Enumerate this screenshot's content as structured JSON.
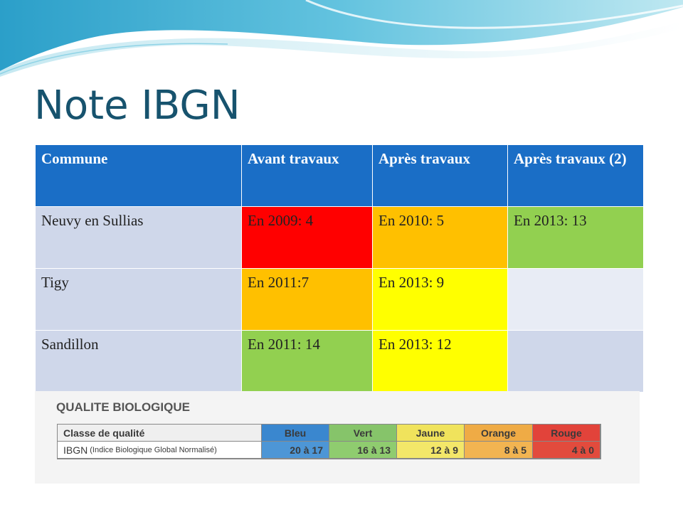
{
  "slide": {
    "title": "Note IBGN"
  },
  "table": {
    "headers": [
      "Commune",
      "Avant travaux",
      "Après travaux",
      "Après travaux (2)"
    ],
    "rows": [
      {
        "commune": "Neuvy en Sullias",
        "cells": [
          "En 2009: 4",
          "En 2010: 5",
          "En 2013: 13"
        ]
      },
      {
        "commune": "Tigy",
        "cells": [
          "En 2011:7",
          "En 2013: 9",
          ""
        ]
      },
      {
        "commune": "Sandillon",
        "cells": [
          "En 2011: 14",
          "En 2013: 12",
          ""
        ]
      }
    ],
    "cell_colors": {
      "red": "#ff0000",
      "orange": "#ffc000",
      "yellow": "#ffff00",
      "green": "#92d050",
      "header": "#1a6ec6"
    }
  },
  "legend": {
    "title": "QUALITE BIOLOGIQUE",
    "row1_label": "Classe de qualité",
    "row2_label": "IBGN",
    "row2_note": "(Indice Biologique Global Normalisé)",
    "classes": [
      "Bleu",
      "Vert",
      "Jaune",
      "Orange",
      "Rouge"
    ],
    "ranges": [
      "20 à 17",
      "16 à 13",
      "12 à 9",
      "8 à 5",
      "4 à 0"
    ]
  }
}
